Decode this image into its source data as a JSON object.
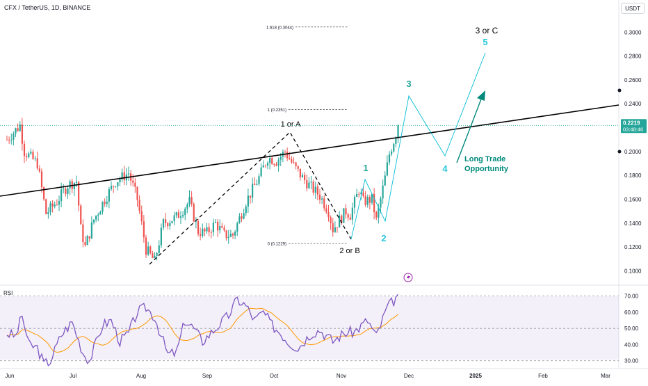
{
  "header": {
    "title": "CFX / TetherUS, 1D, BINANCE",
    "currency": "USDT"
  },
  "price_tag": {
    "value": "0.2219",
    "countdown": "03:48:46"
  },
  "chart_data": {
    "type": "candlestick",
    "x_tick_labels": [
      "Jun",
      "Jul",
      "Aug",
      "Sep",
      "Oct",
      "Nov",
      "Dec",
      "2025",
      "Feb",
      "Mar"
    ],
    "y_ticks": [
      0.1,
      0.12,
      0.14,
      0.16,
      0.18,
      0.2,
      0.22,
      0.24,
      0.26,
      0.28,
      0.3
    ],
    "y_tick_labels": [
      "0.1000",
      "0.1200",
      "0.1400",
      "0.1600",
      "0.1800",
      "0.2000",
      "0.2200",
      "0.2400",
      "0.2600",
      "0.2800",
      "0.3000"
    ],
    "ylim": [
      0.088,
      0.327
    ],
    "last_price": 0.2219,
    "up_color": "#26a69a",
    "down_color": "#ef5350",
    "fib_levels": [
      {
        "label": "1.618 (0.3044)",
        "value": 0.3044
      },
      {
        "label": "1 (0.2351)",
        "value": 0.2351
      },
      {
        "label": "0 (0.1229)",
        "value": 0.1229
      }
    ],
    "annotations": {
      "wave_1_or_a": "1 or A",
      "wave_2_or_b": "2 or B",
      "wave_3_or_c": "3 or C",
      "wave_1": "1",
      "wave_2": "2",
      "wave_3": "3",
      "wave_4": "4",
      "wave_5": "5",
      "trade_line1": "Long Trade",
      "trade_line2": "Opportunity"
    },
    "rsi": {
      "label": "RSI",
      "y_tick_labels": [
        "30.00",
        "40.00",
        "50.00",
        "60.00",
        "70.00"
      ],
      "y_ticks": [
        30,
        40,
        50,
        60,
        70
      ],
      "ylim": [
        26,
        75
      ],
      "line_color": "#7e57c2",
      "ma_color": "#ff9800"
    }
  }
}
